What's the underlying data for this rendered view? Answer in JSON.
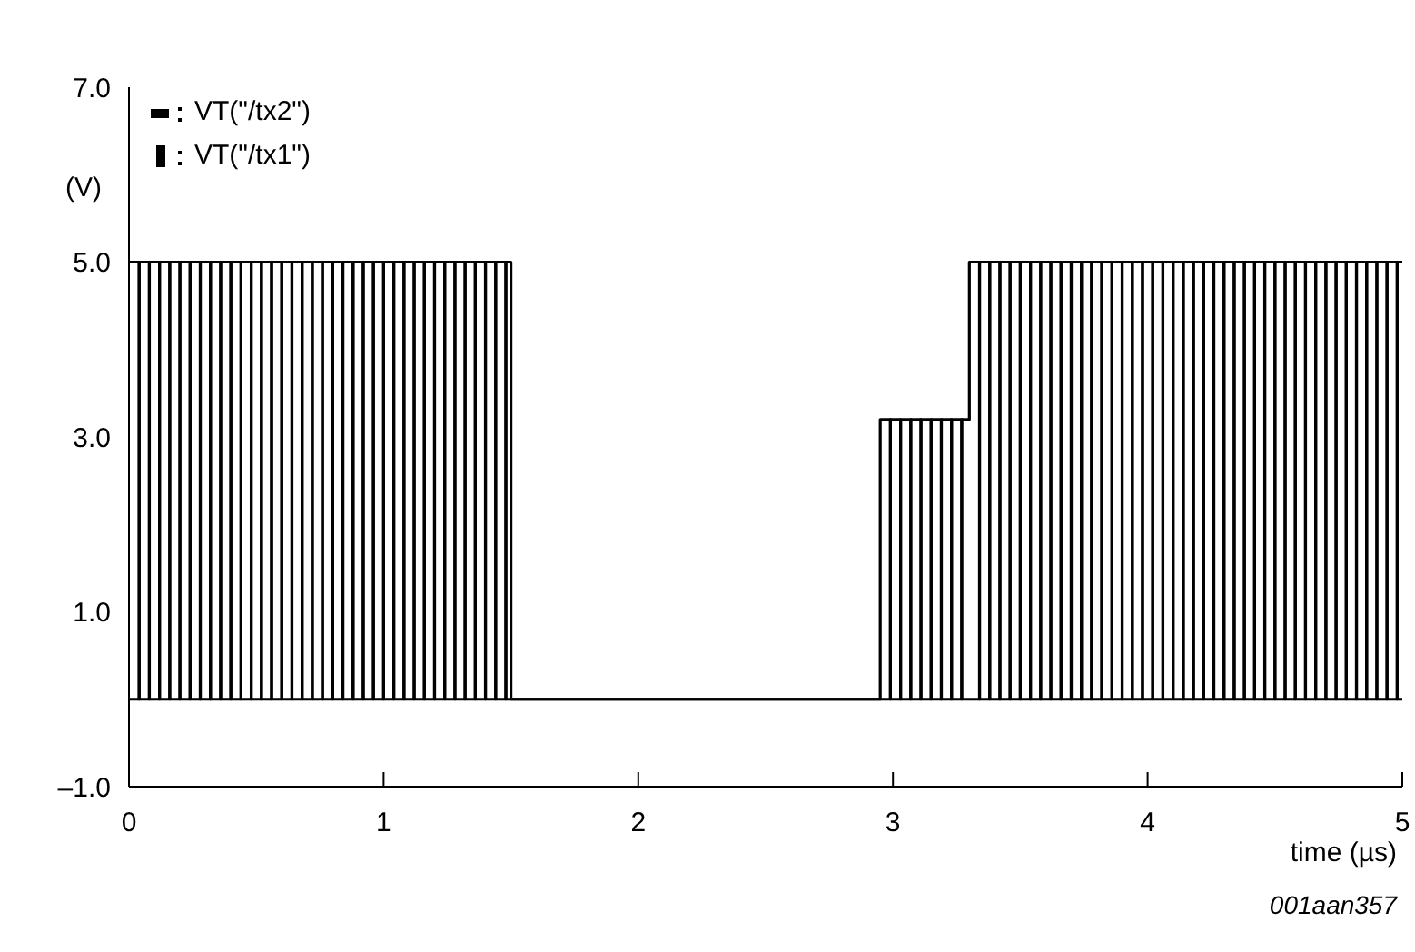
{
  "chart_data": {
    "type": "step",
    "xlabel": "time (µs)",
    "ylabel": "(V)",
    "annotations": [
      "001aan357"
    ],
    "x": [
      0,
      0.04,
      0.08,
      0.12,
      0.16,
      0.2,
      0.24,
      0.28,
      0.32,
      0.36,
      0.4,
      0.44,
      0.48,
      0.52,
      0.56,
      0.6,
      0.64,
      0.68,
      0.72,
      0.76,
      0.8,
      0.84,
      0.88,
      0.92,
      0.96,
      1,
      1.04,
      1.08,
      1.12,
      1.16,
      1.2,
      1.24,
      1.28,
      1.32,
      1.36,
      1.4,
      1.44,
      1.48,
      1.5,
      2.95,
      2.99,
      3.03,
      3.07,
      3.11,
      3.15,
      3.19,
      3.23,
      3.27,
      3.3,
      3.34,
      3.38,
      3.42,
      3.46,
      3.5,
      3.54,
      3.58,
      3.62,
      3.66,
      3.7,
      3.74,
      3.78,
      3.82,
      3.86,
      3.9,
      3.94,
      3.98,
      4.02,
      4.06,
      4.1,
      4.14,
      4.18,
      4.22,
      4.26,
      4.3,
      4.34,
      4.38,
      4.42,
      4.46,
      4.5,
      4.54,
      4.58,
      4.62,
      4.66,
      4.7,
      4.74,
      4.78,
      4.82,
      4.86,
      4.9,
      4.94,
      4.98,
      5
    ],
    "series": [
      {
        "name": "VT(\"/tx2\")",
        "color": "#000000",
        "values": [
          5,
          0,
          5,
          0,
          5,
          0,
          5,
          0,
          5,
          0,
          5,
          0,
          5,
          0,
          5,
          0,
          5,
          0,
          5,
          0,
          5,
          0,
          5,
          0,
          5,
          0,
          5,
          0,
          5,
          0,
          5,
          0,
          5,
          0,
          5,
          0,
          5,
          0,
          0,
          3.2,
          0,
          3.2,
          0,
          3.2,
          0,
          3.2,
          0,
          3.2,
          5,
          0,
          5,
          0,
          5,
          0,
          5,
          0,
          5,
          0,
          5,
          0,
          5,
          0,
          5,
          0,
          5,
          0,
          5,
          0,
          5,
          0,
          5,
          0,
          5,
          0,
          5,
          0,
          5,
          0,
          5,
          0,
          5,
          0,
          5,
          0,
          5,
          0,
          5,
          0,
          5,
          0,
          5,
          5
        ]
      },
      {
        "name": "VT(\"/tx1\")",
        "color": "#000000",
        "values": [
          0,
          5,
          0,
          5,
          0,
          5,
          0,
          5,
          0,
          5,
          0,
          5,
          0,
          5,
          0,
          5,
          0,
          5,
          0,
          5,
          0,
          5,
          0,
          5,
          0,
          5,
          0,
          5,
          0,
          5,
          0,
          5,
          0,
          5,
          0,
          5,
          0,
          5,
          0,
          0,
          3.2,
          0,
          3.2,
          0,
          3.2,
          0,
          3.2,
          0,
          0,
          5,
          0,
          5,
          0,
          5,
          0,
          5,
          0,
          5,
          0,
          5,
          0,
          5,
          0,
          5,
          0,
          5,
          0,
          5,
          0,
          5,
          0,
          5,
          0,
          5,
          0,
          5,
          0,
          5,
          0,
          5,
          0,
          5,
          0,
          5,
          0,
          5,
          0,
          5,
          0,
          5,
          0,
          0
        ]
      }
    ],
    "xlim": [
      0,
      5
    ],
    "xticks": [
      0,
      1,
      2,
      3,
      4,
      5
    ],
    "ylim": [
      -1,
      7
    ],
    "yticks": [
      {
        "value": -1,
        "label": "–1.0"
      },
      {
        "value": 1,
        "label": "1.0"
      },
      {
        "value": 3,
        "label": "3.0"
      },
      {
        "value": 5,
        "label": "5.0"
      },
      {
        "value": 7,
        "label": "7.0"
      }
    ],
    "grid": false,
    "legend": "top left",
    "marker": "none",
    "line_style": "solid"
  }
}
